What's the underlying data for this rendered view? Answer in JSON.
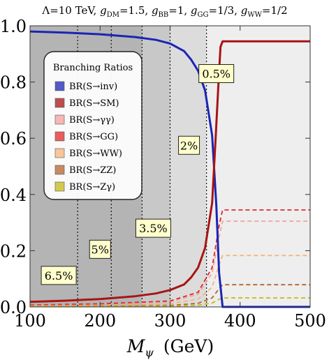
{
  "chart_data": {
    "type": "line",
    "title_parts": {
      "prefix": "Λ=10 TeV, ",
      "dm_sym": "g",
      "dm_sub": "DM",
      "dm_val": "=1.5, ",
      "bb_sym": "g",
      "bb_sub": "BB",
      "bb_val": "=1, ",
      "gg_sym": "g",
      "gg_sub": "GG",
      "gg_val": "=1/3, ",
      "ww_sym": "g",
      "ww_sub": "WW",
      "ww_val": "=1/2"
    },
    "xlabel_main": "M",
    "xlabel_sub": "ψ",
    "xlabel_unit": "(GeV)",
    "xlim": [
      100,
      500
    ],
    "ylim": [
      0,
      1
    ],
    "xticks": [
      "100",
      "200",
      "300",
      "400",
      "500"
    ],
    "yticks": [
      "0.0",
      "0.2",
      "0.4",
      "0.6",
      "0.8",
      "1.0"
    ],
    "xtick_values": [
      100,
      200,
      300,
      400,
      500
    ],
    "ytick_values": [
      0,
      0.2,
      0.4,
      0.6,
      0.8,
      1.0
    ],
    "regions": [
      {
        "x0": 100,
        "x1": 260,
        "color": "#b4b4b4"
      },
      {
        "x0": 260,
        "x1": 300,
        "color": "#c8c8c8"
      },
      {
        "x0": 300,
        "x1": 352,
        "color": "#dcdcdc"
      },
      {
        "x0": 352,
        "x1": 500,
        "color": "#eeeeee"
      }
    ],
    "vertical_lines": [
      168,
      216,
      260,
      300,
      352
    ],
    "annotations": [
      {
        "text": "0.5%",
        "x": 366,
        "y": 0.83
      },
      {
        "text": "2%",
        "x": 327,
        "y": 0.575
      },
      {
        "text": "3.5%",
        "x": 276,
        "y": 0.28
      },
      {
        "text": "5%",
        "x": 200,
        "y": 0.205
      },
      {
        "text": "6.5%",
        "x": 141,
        "y": 0.112
      }
    ],
    "legend": {
      "title": "Branching Ratios",
      "placement": "upper-left",
      "entries": [
        "BR(S→inv)",
        "BR(S→SM)",
        "BR(S→γγ)",
        "BR(S→GG)",
        "BR(S→WW)",
        "BR(S→ZZ)",
        "BR(S→Zγ)"
      ]
    },
    "series": [
      {
        "name": "BR(S→inv)",
        "color": "#1a25b4",
        "dash": false,
        "x": [
          100,
          150,
          200,
          250,
          280,
          300,
          320,
          330,
          340,
          350,
          360,
          366,
          370,
          375,
          380,
          500
        ],
        "y": [
          0.98,
          0.976,
          0.97,
          0.96,
          0.95,
          0.937,
          0.91,
          0.88,
          0.84,
          0.77,
          0.61,
          0.36,
          0.12,
          0.0,
          0.0,
          0.0
        ]
      },
      {
        "name": "BR(S→SM)",
        "color": "#a81414",
        "dash": false,
        "x": [
          100,
          150,
          200,
          250,
          280,
          300,
          320,
          330,
          340,
          350,
          360,
          365,
          370,
          372,
          375,
          380,
          500
        ],
        "y": [
          0.018,
          0.022,
          0.028,
          0.038,
          0.048,
          0.06,
          0.08,
          0.105,
          0.14,
          0.21,
          0.37,
          0.6,
          0.84,
          0.925,
          0.945,
          0.945,
          0.945
        ]
      },
      {
        "name": "BR(S→γγ)",
        "color": "#f5a0a0",
        "dash": true,
        "x": [
          100,
          200,
          300,
          340,
          360,
          370,
          375,
          380,
          500
        ],
        "y": [
          0.006,
          0.009,
          0.018,
          0.045,
          0.12,
          0.25,
          0.305,
          0.305,
          0.305
        ]
      },
      {
        "name": "BR(S→GG)",
        "color": "#e02828",
        "dash": true,
        "x": [
          100,
          200,
          300,
          340,
          360,
          370,
          375,
          380,
          500
        ],
        "y": [
          0.007,
          0.011,
          0.021,
          0.052,
          0.14,
          0.29,
          0.345,
          0.345,
          0.345
        ]
      },
      {
        "name": "BR(S→WW)",
        "color": "#f5b478",
        "dash": true,
        "x": [
          100,
          200,
          300,
          340,
          360,
          370,
          375,
          380,
          500
        ],
        "y": [
          0.004,
          0.006,
          0.011,
          0.028,
          0.07,
          0.15,
          0.183,
          0.183,
          0.183
        ]
      },
      {
        "name": "BR(S→ZZ)",
        "color": "#b4642d",
        "dash": true,
        "x": [
          100,
          200,
          300,
          340,
          360,
          370,
          375,
          380,
          500
        ],
        "y": [
          0.002,
          0.003,
          0.005,
          0.013,
          0.032,
          0.065,
          0.079,
          0.079,
          0.079
        ]
      },
      {
        "name": "BR(S→Zγ)",
        "color": "#c3b914",
        "dash": true,
        "x": [
          100,
          200,
          300,
          340,
          360,
          370,
          375,
          380,
          500
        ],
        "y": [
          0.001,
          0.0015,
          0.0025,
          0.006,
          0.014,
          0.027,
          0.032,
          0.032,
          0.032
        ]
      }
    ]
  }
}
